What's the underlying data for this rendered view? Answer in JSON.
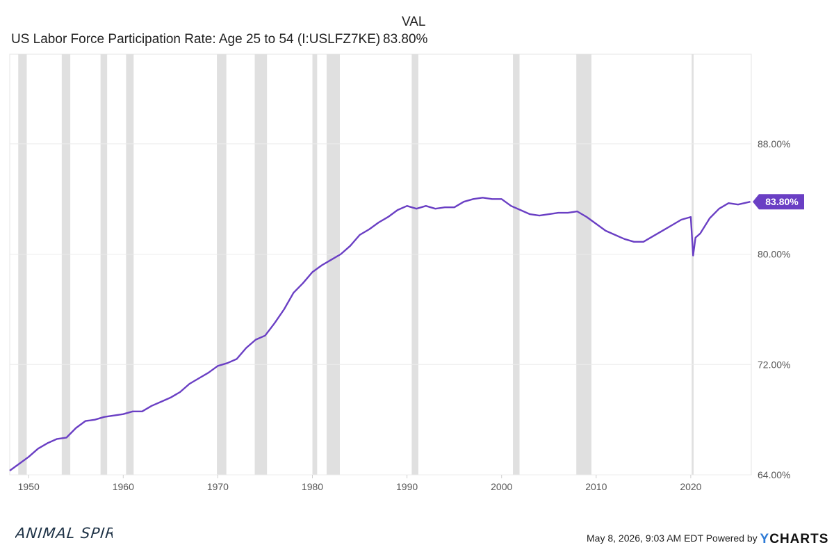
{
  "legend": {
    "column_header": "VAL",
    "series_name": "US Labor Force Participation Rate: Age 25 to 54 (I:USLFZ7KE)",
    "series_value": "83.80%"
  },
  "footer": {
    "logo_text": "ANIMAL SPIRITS",
    "timestamp": "May 8, 2026, 9:03 AM EDT Powered by",
    "brand_y": "Y",
    "brand_rest": "CHARTS"
  },
  "colors": {
    "line": "#6a3fc4",
    "recession": "#e0e0e0",
    "grid": "#ececec"
  },
  "chart_data": {
    "type": "line",
    "title": "US Labor Force Participation Rate: Age 25 to 54 (I:USLFZ7KE)",
    "xlabel": "",
    "ylabel": "",
    "xlim": [
      1948,
      2026.4
    ],
    "ylim": [
      64,
      94.5
    ],
    "x_ticks": [
      1950,
      1960,
      1970,
      1980,
      1990,
      2000,
      2010,
      2020
    ],
    "y_ticks": [
      64,
      72,
      80,
      88
    ],
    "y_tick_labels": [
      "64.00%",
      "72.00%",
      "80.00%",
      "88.00%"
    ],
    "last_value_label": "83.80%",
    "last_value": 83.8,
    "recessions": [
      [
        1948.9,
        1949.8
      ],
      [
        1953.5,
        1954.4
      ],
      [
        1957.6,
        1958.3
      ],
      [
        1960.3,
        1961.1
      ],
      [
        1969.9,
        1970.9
      ],
      [
        1973.9,
        1975.2
      ],
      [
        1980.0,
        1980.5
      ],
      [
        1981.5,
        1982.9
      ],
      [
        1990.5,
        1991.2
      ],
      [
        2001.2,
        2001.9
      ],
      [
        2007.9,
        2009.5
      ],
      [
        2020.1,
        2020.3
      ]
    ],
    "series": [
      {
        "x": [
          1948.0,
          1949.0,
          1950.0,
          1951.0,
          1952.0,
          1953.0,
          1954.0,
          1955.0,
          1956.0,
          1957.0,
          1958.0,
          1959.0,
          1960.0,
          1961.0,
          1962.0,
          1963.0,
          1964.0,
          1965.0,
          1966.0,
          1967.0,
          1968.0,
          1969.0,
          1970.0,
          1971.0,
          1972.0,
          1973.0,
          1974.0,
          1975.0,
          1976.0,
          1977.0,
          1978.0,
          1979.0,
          1980.0,
          1981.0,
          1982.0,
          1983.0,
          1984.0,
          1985.0,
          1986.0,
          1987.0,
          1988.0,
          1989.0,
          1990.0,
          1991.0,
          1992.0,
          1993.0,
          1994.0,
          1995.0,
          1996.0,
          1997.0,
          1998.0,
          1999.0,
          2000.0,
          2001.0,
          2002.0,
          2003.0,
          2004.0,
          2005.0,
          2006.0,
          2007.0,
          2008.0,
          2009.0,
          2010.0,
          2011.0,
          2012.0,
          2013.0,
          2014.0,
          2015.0,
          2016.0,
          2017.0,
          2018.0,
          2019.0,
          2020.0,
          2020.25,
          2020.5,
          2021.0,
          2022.0,
          2023.0,
          2024.0,
          2025.0,
          2026.3
        ],
        "y": [
          64.3,
          64.8,
          65.3,
          65.9,
          66.3,
          66.6,
          66.7,
          67.4,
          67.9,
          68.0,
          68.2,
          68.3,
          68.4,
          68.6,
          68.6,
          69.0,
          69.3,
          69.6,
          70.0,
          70.6,
          71.0,
          71.4,
          71.9,
          72.1,
          72.4,
          73.2,
          73.8,
          74.1,
          75.0,
          76.0,
          77.2,
          77.9,
          78.7,
          79.2,
          79.6,
          80.0,
          80.6,
          81.4,
          81.8,
          82.3,
          82.7,
          83.2,
          83.5,
          83.3,
          83.5,
          83.3,
          83.4,
          83.4,
          83.8,
          84.0,
          84.1,
          84.0,
          84.0,
          83.5,
          83.2,
          82.9,
          82.8,
          82.9,
          83.0,
          83.0,
          83.1,
          82.7,
          82.2,
          81.7,
          81.4,
          81.1,
          80.9,
          80.9,
          81.3,
          81.7,
          82.1,
          82.5,
          82.7,
          79.9,
          81.2,
          81.5,
          82.6,
          83.3,
          83.7,
          83.6,
          83.8
        ]
      }
    ]
  }
}
